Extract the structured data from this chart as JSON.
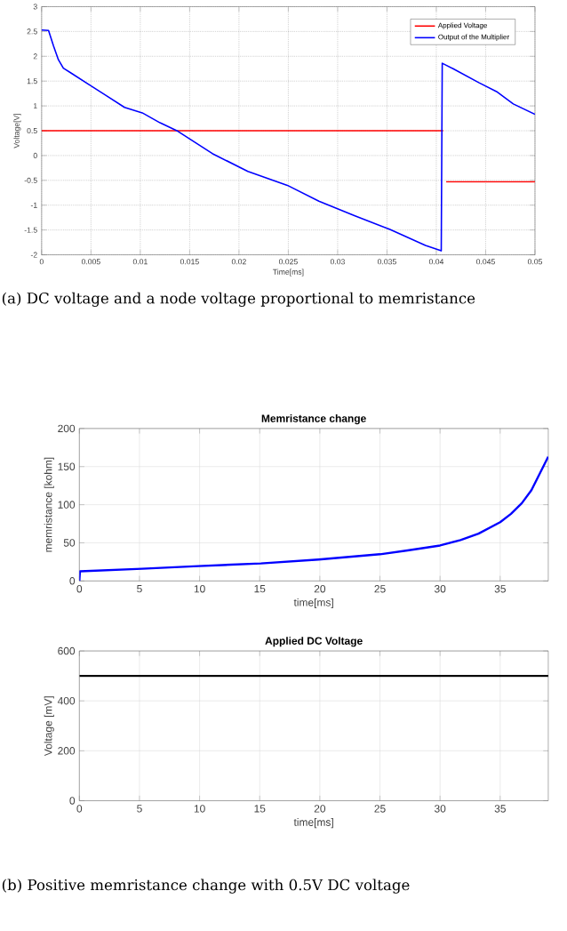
{
  "chart_data": [
    {
      "type": "line",
      "xlabel": "Time[ms]",
      "ylabel": "Voltage[V]",
      "xlim": [
        0,
        0.05
      ],
      "ylim": [
        -2,
        3
      ],
      "xticks": [
        0,
        0.005,
        0.01,
        0.015,
        0.02,
        0.025,
        0.03,
        0.035,
        0.04,
        0.045,
        0.05
      ],
      "yticks": [
        -2,
        -1.5,
        -1,
        -0.5,
        0,
        0.5,
        1,
        1.5,
        2,
        2.5,
        3
      ],
      "grid": true,
      "legend": "top right",
      "marker": "none",
      "line_style": "solid",
      "series": [
        {
          "name": "Applied Voltage",
          "color": "#ff0000",
          "x": [
            0,
            0.0407,
            0.0408,
            0.041,
            0.05
          ],
          "values": [
            0.5,
            0.5,
            null,
            -0.53,
            -0.53
          ]
        },
        {
          "name": "Output of the Multiplier",
          "color": "#0000ff",
          "x": [
            0,
            0.0007,
            0.0012,
            0.0017,
            0.0022,
            0.003,
            0.0048,
            0.0066,
            0.0084,
            0.0102,
            0.012,
            0.0138,
            0.0173,
            0.0209,
            0.0249,
            0.0281,
            0.0317,
            0.0353,
            0.0389,
            0.0405,
            0.0406,
            0.0417,
            0.0443,
            0.0461,
            0.0478,
            0.05
          ],
          "values": [
            2.53,
            2.52,
            2.21,
            1.93,
            1.76,
            1.66,
            1.43,
            1.2,
            0.97,
            0.86,
            0.66,
            0.49,
            0.04,
            -0.32,
            -0.6,
            -0.92,
            -1.21,
            -1.49,
            -1.81,
            -1.92,
            1.86,
            1.75,
            1.47,
            1.29,
            1.04,
            0.83
          ]
        }
      ],
      "annotations": [
        "(a) DC voltage and a node voltage proportional to memristance"
      ]
    },
    {
      "type": "line",
      "title": "Memristance change",
      "xlabel": "time[ms]",
      "ylabel": "memristance [kohm]",
      "xlim": [
        0,
        39
      ],
      "ylim": [
        0,
        200
      ],
      "xticks": [
        0,
        5,
        10,
        15,
        20,
        25,
        30,
        35
      ],
      "yticks": [
        0,
        50,
        100,
        150,
        200
      ],
      "grid": true,
      "marker": "none",
      "line_style": "solid",
      "series": [
        {
          "color": "#0000ff",
          "x": [
            0,
            0.05,
            5.2,
            9.9,
            15.1,
            19.9,
            25,
            27.3,
            30,
            31.7,
            33.2,
            35,
            35.9,
            36.8,
            37.6,
            39
          ],
          "values": [
            0,
            12.6,
            16,
            19.5,
            23,
            28,
            35,
            40,
            46.5,
            53.5,
            62,
            77,
            88,
            102,
            119,
            163
          ]
        }
      ]
    },
    {
      "type": "line",
      "title": "Applied DC Voltage",
      "xlabel": "time[ms]",
      "ylabel": "Voltage [mV]",
      "xlim": [
        0,
        39
      ],
      "ylim": [
        0,
        600
      ],
      "xticks": [
        0,
        5,
        10,
        15,
        20,
        25,
        30,
        35
      ],
      "yticks": [
        0,
        200,
        400,
        600
      ],
      "grid": true,
      "marker": "none",
      "line_style": "solid",
      "series": [
        {
          "color": "#000000",
          "x": [
            0,
            39
          ],
          "values": [
            500,
            500
          ]
        }
      ],
      "annotations": [
        "(b) Positive memristance change with 0.5V DC voltage"
      ]
    }
  ]
}
